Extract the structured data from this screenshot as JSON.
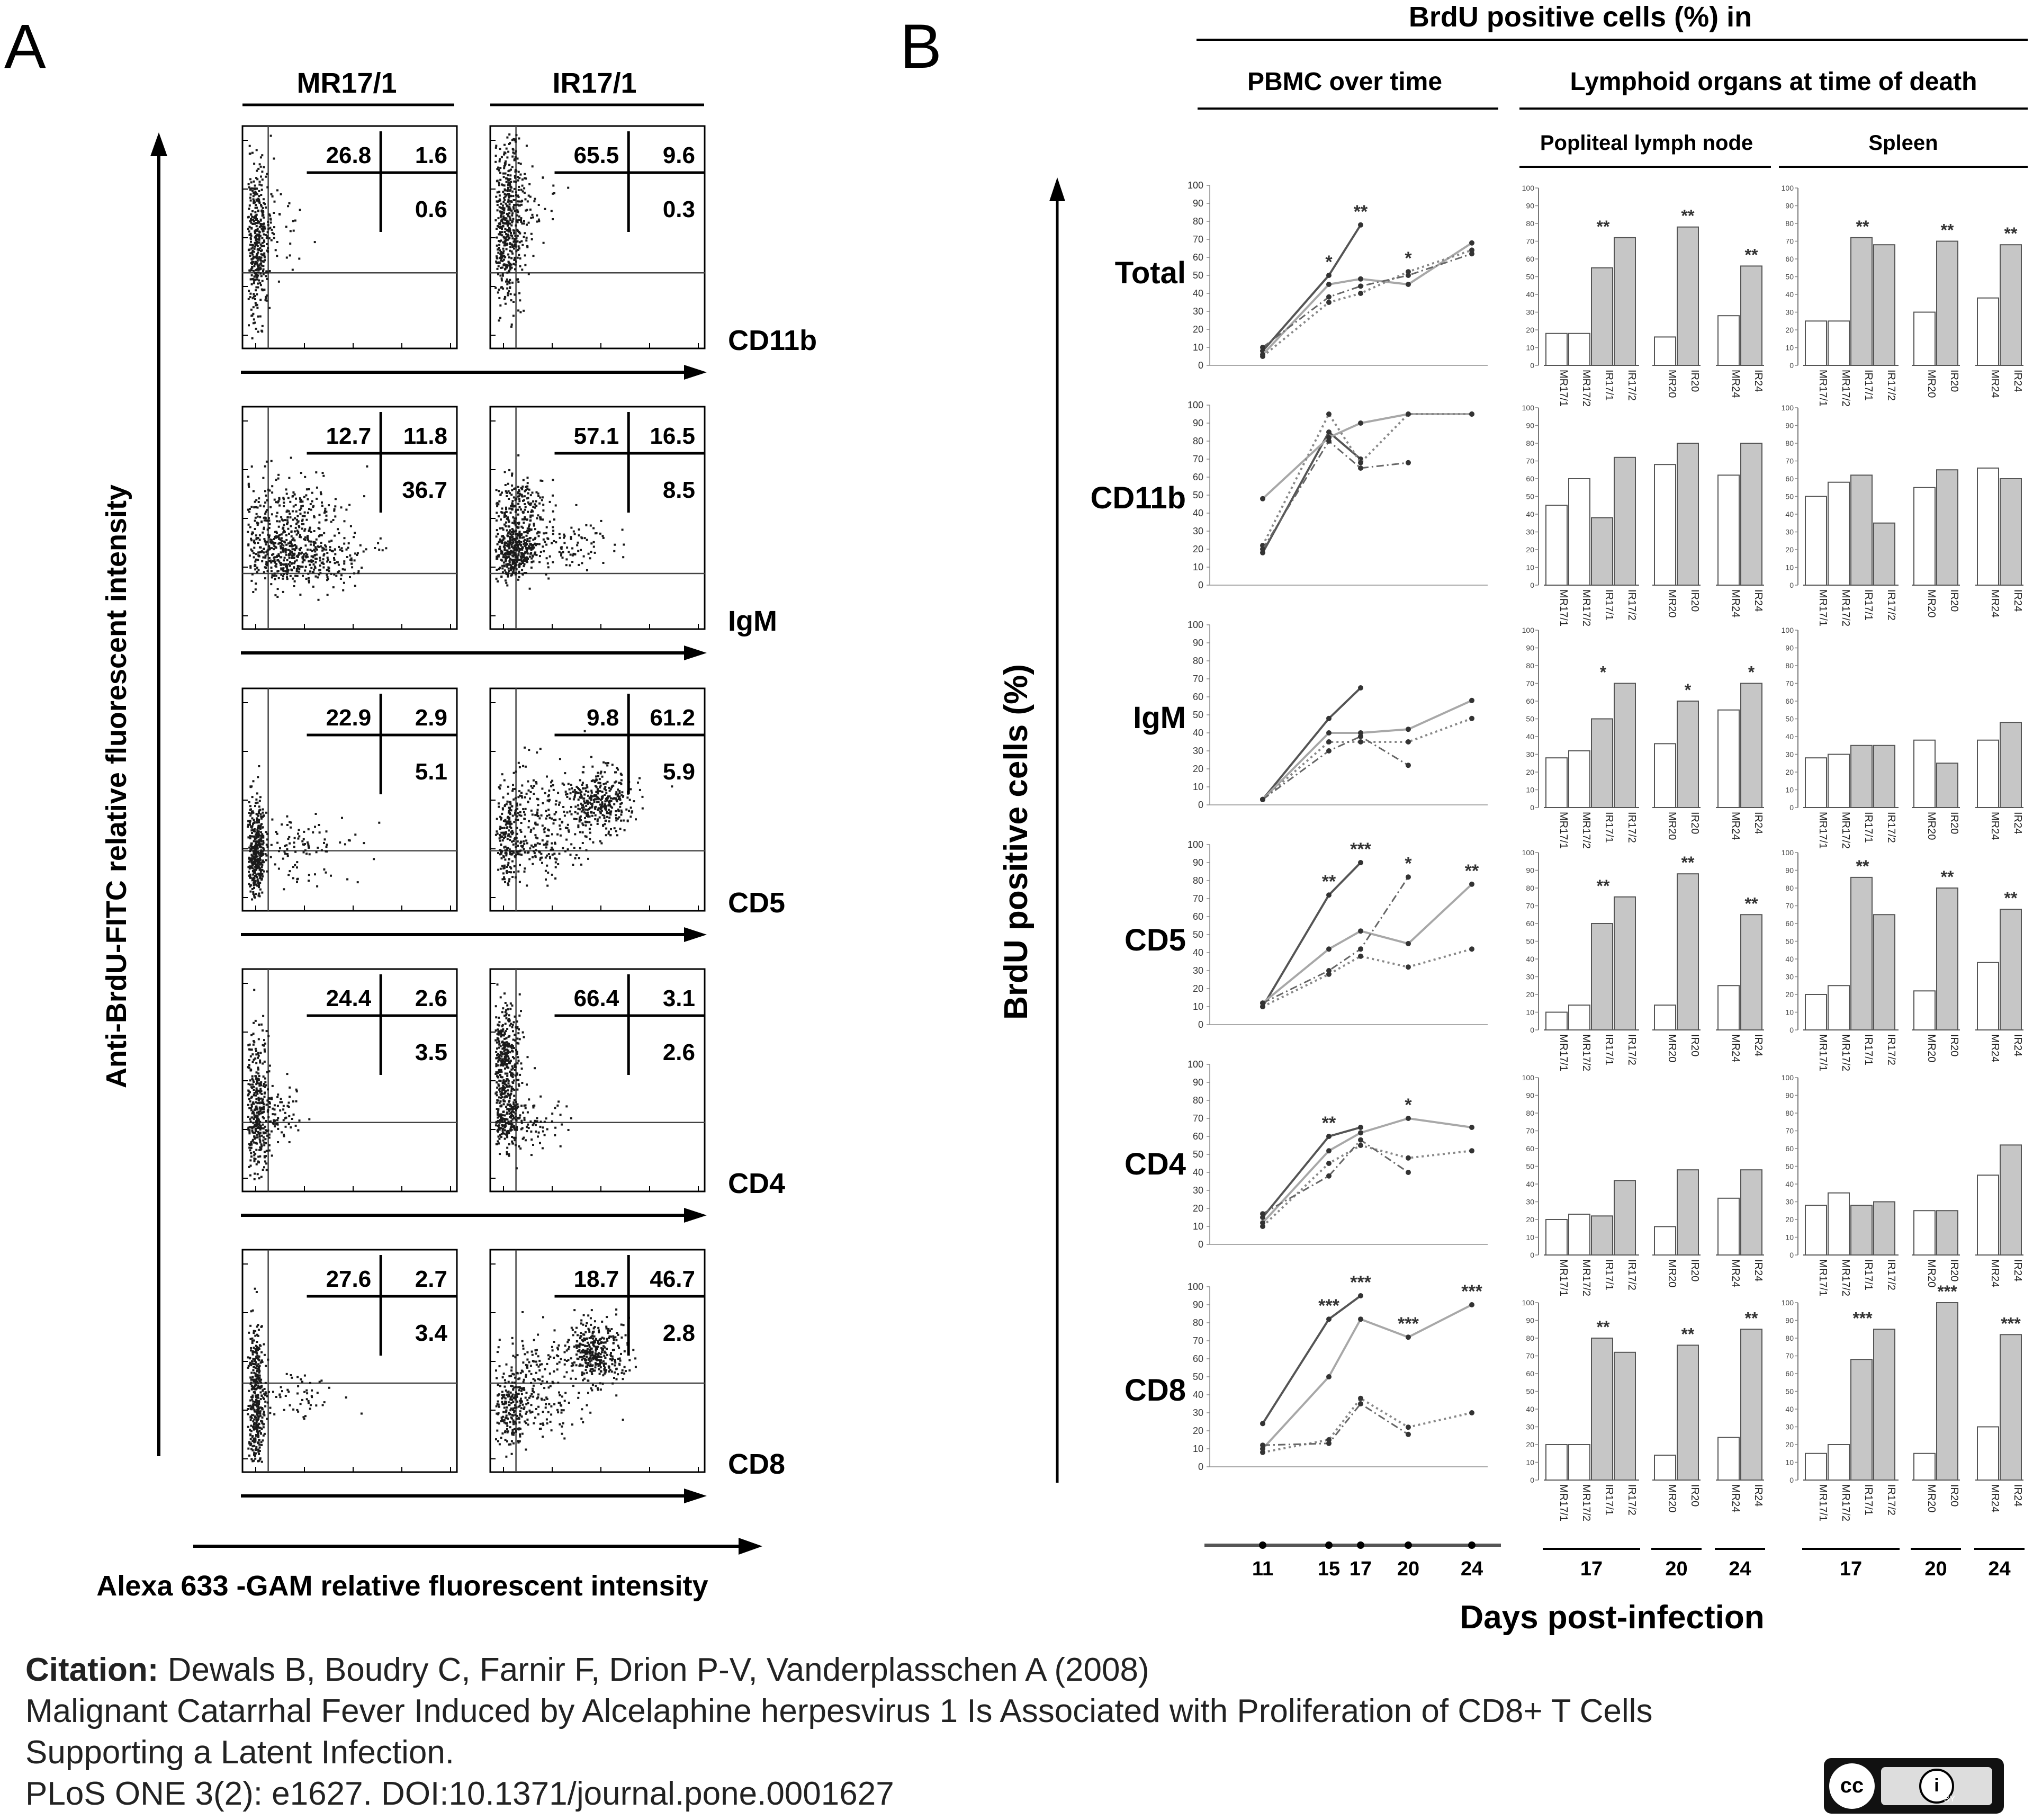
{
  "panels": {
    "a": "A",
    "b": "B"
  },
  "panel_a": {
    "columns": [
      "MR17/1",
      "IR17/1"
    ],
    "y_axis_label": "Anti-BrdU-FITC relative fluorescent   intensity",
    "x_axis_label": "Alexa 633 -GAM relative fluorescent   intensity",
    "row_labels": [
      "CD11b",
      "IgM",
      "CD5",
      "CD4",
      "CD8"
    ]
  },
  "panel_b": {
    "main_title": "BrdU positive cells (%) in",
    "col_pbmc": "PBMC over time",
    "col_lymphoid": "Lymphoid organs at time of death",
    "col_popliteal": "Popliteal  lymph  node",
    "col_spleen": "Spleen",
    "y_axis_label": "BrdU positive  cells (%)",
    "x_axis_label": "Days post-infection",
    "row_labels": [
      "Total",
      "CD11b",
      "IgM",
      "CD5",
      "CD4",
      "CD8"
    ],
    "day_ticks": [
      "11",
      "15",
      "17",
      "20",
      "24"
    ],
    "bar_groups": [
      {
        "day": "17",
        "labels": [
          "MR17/1",
          "MR17/2",
          "IR17/1",
          "IR17/2"
        ]
      },
      {
        "day": "20",
        "labels": [
          "MR20",
          "IR20"
        ]
      },
      {
        "day": "24",
        "labels": [
          "MR24",
          "IR24"
        ]
      }
    ]
  },
  "citation": {
    "label": "Citation:",
    "line1": "Dewals B, Boudry C, Farnir F, Drion P-V, Vanderplasschen A (2008)",
    "line2": "Malignant Catarrhal Fever Induced by Alcelaphine herpesvirus 1 Is Associated with Proliferation of CD8+ T Cells",
    "line3": "Supporting a Latent Infection.",
    "line4": "PLoS ONE 3(2): e1627. DOI:10.1371/journal.pone.0001627"
  },
  "license": {
    "cc": "cc",
    "by": "BY"
  },
  "colors": {
    "bar_mr": "#ffffff",
    "bar_ir": "#c6c6c6",
    "line_gray": "#a8a8a8",
    "line_dark": "#555555",
    "dots": "#1a1a1a"
  },
  "chart_data": [
    {
      "type": "scatter",
      "title": "Flow cytometry quadrant percentages",
      "xlabel": "Alexa 633 -GAM relative fluorescent   intensity",
      "ylabel": "Anti-BrdU-FITC relative fluorescent   intensity",
      "columns": [
        "MR17/1",
        "IR17/1"
      ],
      "rows": [
        {
          "marker": "CD11b",
          "MR17/1": {
            "upper_left": 26.8,
            "upper_right": 1.6,
            "lower_right": 0.6
          },
          "IR17/1": {
            "upper_left": 65.5,
            "upper_right": 9.6,
            "lower_right": 0.3
          }
        },
        {
          "marker": "IgM",
          "MR17/1": {
            "upper_left": 12.7,
            "upper_right": 11.8,
            "lower_right": 36.7
          },
          "IR17/1": {
            "upper_left": 57.1,
            "upper_right": 16.5,
            "lower_right": 8.5
          }
        },
        {
          "marker": "CD5",
          "MR17/1": {
            "upper_left": 22.9,
            "upper_right": 2.9,
            "lower_right": 5.1
          },
          "IR17/1": {
            "upper_left": 9.8,
            "upper_right": 61.2,
            "lower_right": 5.9
          }
        },
        {
          "marker": "CD4",
          "MR17/1": {
            "upper_left": 24.4,
            "upper_right": 2.6,
            "lower_right": 3.5
          },
          "IR17/1": {
            "upper_left": 66.4,
            "upper_right": 3.1,
            "lower_right": 2.6
          }
        },
        {
          "marker": "CD8",
          "MR17/1": {
            "upper_left": 27.6,
            "upper_right": 2.7,
            "lower_right": 3.4
          },
          "IR17/1": {
            "upper_left": 18.7,
            "upper_right": 46.7,
            "lower_right": 2.8
          }
        }
      ]
    },
    {
      "type": "line",
      "title": "PBMC over time",
      "xlabel": "Days post-infection",
      "ylabel": "BrdU positive  cells (%)",
      "x": [
        11,
        15,
        17,
        20,
        24
      ],
      "ylim": [
        0,
        100
      ],
      "yticks": [
        0,
        10,
        20,
        30,
        40,
        50,
        60,
        70,
        80,
        90,
        100
      ],
      "rows": [
        {
          "marker": "Total",
          "series": [
            {
              "style": "solid-dark",
              "values": [
                8,
                50,
                78,
                null,
                null
              ]
            },
            {
              "style": "solid-gray",
              "values": [
                6,
                45,
                48,
                45,
                68
              ]
            },
            {
              "style": "dotted",
              "values": [
                5,
                35,
                40,
                52,
                64
              ]
            },
            {
              "style": "dash-dot",
              "values": [
                10,
                38,
                44,
                50,
                62
              ]
            }
          ],
          "annotations": [
            {
              "x": 15,
              "text": "*"
            },
            {
              "x": 17,
              "text": "**"
            },
            {
              "x": 20,
              "text": "*"
            }
          ]
        },
        {
          "marker": "CD11b",
          "series": [
            {
              "style": "solid-dark",
              "values": [
                18,
                85,
                70,
                null,
                null
              ]
            },
            {
              "style": "solid-gray",
              "values": [
                48,
                82,
                90,
                95,
                95
              ]
            },
            {
              "style": "dotted",
              "values": [
                22,
                95,
                68,
                95,
                95
              ]
            },
            {
              "style": "dash-dot",
              "values": [
                20,
                80,
                65,
                68,
                null
              ]
            }
          ],
          "annotations": []
        },
        {
          "marker": "IgM",
          "series": [
            {
              "style": "solid-dark",
              "values": [
                3,
                48,
                65,
                null,
                null
              ]
            },
            {
              "style": "solid-gray",
              "values": [
                3,
                40,
                40,
                42,
                58
              ]
            },
            {
              "style": "dotted",
              "values": [
                3,
                35,
                35,
                35,
                48
              ]
            },
            {
              "style": "dash-dot",
              "values": [
                3,
                30,
                38,
                22,
                null
              ]
            }
          ],
          "annotations": []
        },
        {
          "marker": "CD5",
          "series": [
            {
              "style": "solid-dark",
              "values": [
                10,
                72,
                90,
                null,
                null
              ]
            },
            {
              "style": "solid-gray",
              "values": [
                12,
                42,
                52,
                45,
                78
              ]
            },
            {
              "style": "dotted",
              "values": [
                10,
                28,
                38,
                32,
                42
              ]
            },
            {
              "style": "dash-dot",
              "values": [
                12,
                30,
                42,
                82,
                null
              ]
            }
          ],
          "annotations": [
            {
              "x": 15,
              "text": "**"
            },
            {
              "x": 17,
              "text": "***"
            },
            {
              "x": 20,
              "text": "*"
            },
            {
              "x": 24,
              "text": "**"
            }
          ]
        },
        {
          "marker": "CD4",
          "series": [
            {
              "style": "solid-dark",
              "values": [
                15,
                60,
                65,
                null,
                null
              ]
            },
            {
              "style": "solid-gray",
              "values": [
                12,
                52,
                62,
                70,
                65
              ]
            },
            {
              "style": "dotted",
              "values": [
                10,
                45,
                55,
                48,
                52
              ]
            },
            {
              "style": "dash-dot",
              "values": [
                17,
                38,
                58,
                40,
                null
              ]
            }
          ],
          "annotations": [
            {
              "x": 15,
              "text": "**"
            },
            {
              "x": 20,
              "text": "*"
            }
          ]
        },
        {
          "marker": "CD8",
          "series": [
            {
              "style": "solid-dark",
              "values": [
                24,
                82,
                95,
                null,
                null
              ]
            },
            {
              "style": "solid-gray",
              "values": [
                10,
                50,
                82,
                72,
                90
              ]
            },
            {
              "style": "dotted",
              "values": [
                8,
                15,
                38,
                22,
                30
              ]
            },
            {
              "style": "dash-dot",
              "values": [
                12,
                13,
                35,
                18,
                null
              ]
            }
          ],
          "annotations": [
            {
              "x": 15,
              "text": "***"
            },
            {
              "x": 17,
              "text": "***"
            },
            {
              "x": 20,
              "text": "***"
            },
            {
              "x": 24,
              "text": "***"
            }
          ]
        }
      ]
    },
    {
      "type": "bar",
      "title": "Lymphoid organs at time of death",
      "ylabel": "BrdU positive  cells (%)",
      "ylim": [
        0,
        100
      ],
      "groups": [
        {
          "day": "17",
          "categories": [
            "MR17/1",
            "MR17/2",
            "IR17/1",
            "IR17/2"
          ]
        },
        {
          "day": "20",
          "categories": [
            "MR20",
            "IR20"
          ]
        },
        {
          "day": "24",
          "categories": [
            "MR24",
            "IR24"
          ]
        }
      ],
      "organs": [
        "Popliteal  lymph  node",
        "Spleen"
      ],
      "rows": [
        {
          "marker": "Total",
          "popliteal": {
            "values": [
              18,
              18,
              55,
              72,
              16,
              78,
              28,
              56
            ],
            "stars": [
              "**",
              "**",
              "**"
            ]
          },
          "spleen": {
            "values": [
              25,
              25,
              72,
              68,
              30,
              70,
              38,
              68
            ],
            "stars": [
              "**",
              "**",
              "**"
            ]
          }
        },
        {
          "marker": "CD11b",
          "popliteal": {
            "values": [
              45,
              60,
              38,
              72,
              68,
              80,
              62,
              80
            ],
            "stars": [
              "",
              "",
              ""
            ]
          },
          "spleen": {
            "values": [
              50,
              58,
              62,
              35,
              55,
              65,
              66,
              60
            ],
            "stars": [
              "",
              "",
              ""
            ]
          }
        },
        {
          "marker": "IgM",
          "popliteal": {
            "values": [
              28,
              32,
              50,
              70,
              36,
              60,
              55,
              70
            ],
            "stars": [
              "*",
              "*",
              "*"
            ]
          },
          "spleen": {
            "values": [
              28,
              30,
              35,
              35,
              38,
              25,
              38,
              48
            ],
            "stars": [
              "",
              "",
              ""
            ]
          }
        },
        {
          "marker": "CD5",
          "popliteal": {
            "values": [
              10,
              14,
              60,
              75,
              14,
              88,
              25,
              65
            ],
            "stars": [
              "**",
              "**",
              "**"
            ]
          },
          "spleen": {
            "values": [
              20,
              25,
              86,
              65,
              22,
              80,
              38,
              68
            ],
            "stars": [
              "**",
              "**",
              "**"
            ]
          }
        },
        {
          "marker": "CD4",
          "popliteal": {
            "values": [
              20,
              23,
              22,
              42,
              16,
              48,
              32,
              48
            ],
            "stars": [
              "",
              "",
              ""
            ]
          },
          "spleen": {
            "values": [
              28,
              35,
              28,
              30,
              25,
              25,
              45,
              62
            ],
            "stars": [
              "",
              "",
              ""
            ]
          }
        },
        {
          "marker": "CD8",
          "popliteal": {
            "values": [
              20,
              20,
              80,
              72,
              14,
              76,
              24,
              85
            ],
            "stars": [
              "**",
              "**",
              "**"
            ]
          },
          "spleen": {
            "values": [
              15,
              20,
              68,
              85,
              15,
              100,
              30,
              82
            ],
            "stars": [
              "***",
              "***",
              "***"
            ]
          }
        }
      ]
    }
  ]
}
